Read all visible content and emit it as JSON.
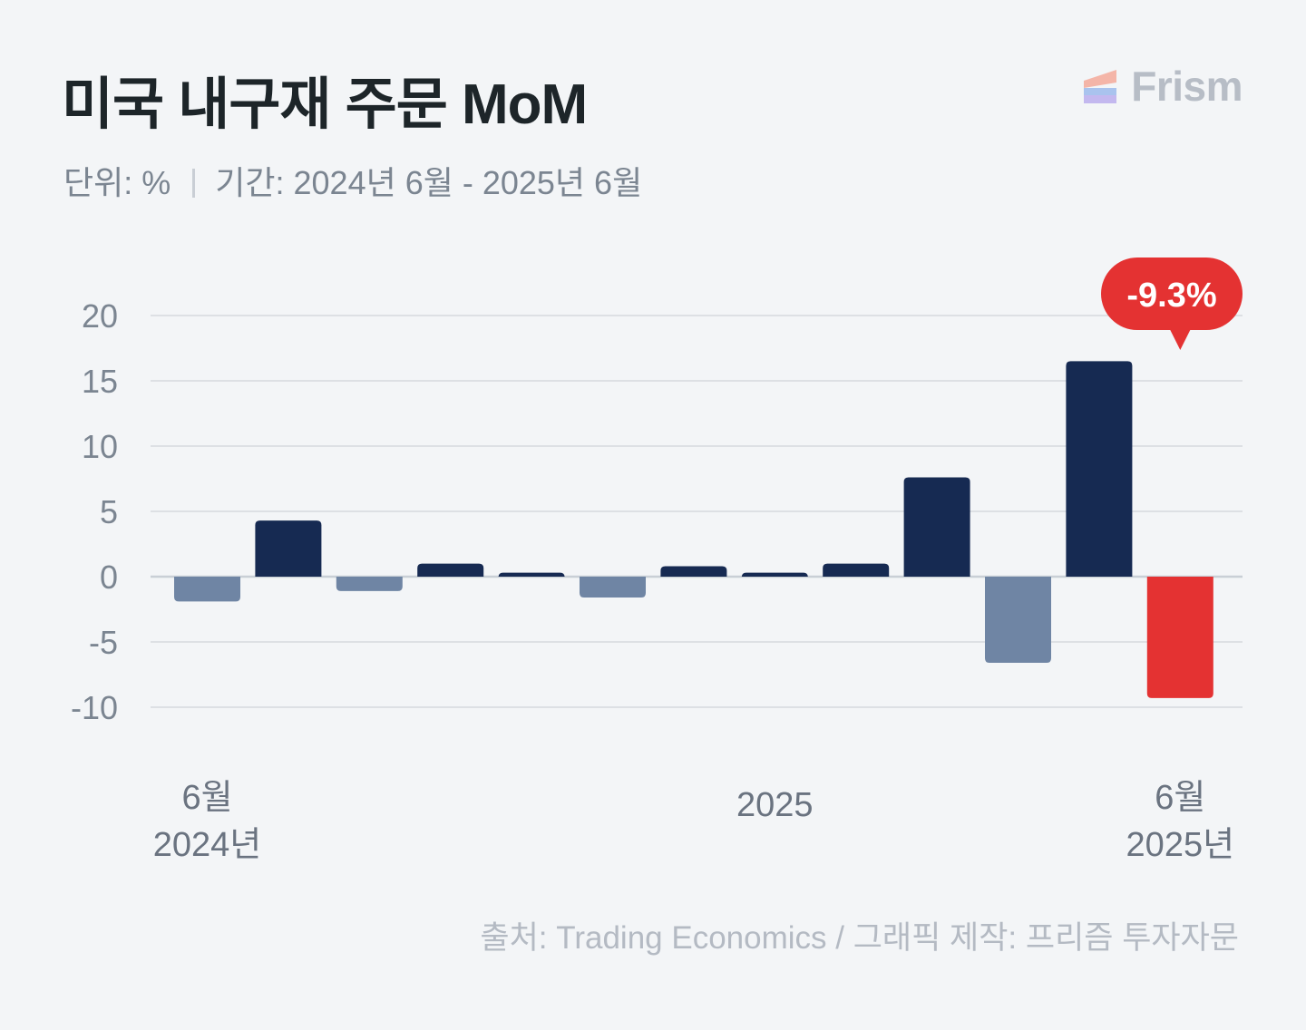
{
  "header": {
    "title": "미국 내구재 주문 MoM",
    "unit": "단위: %",
    "period": "기간: 2024년 6월 - 2025년 6월"
  },
  "logo": {
    "text": "Frism",
    "icon": "frism-logo-icon"
  },
  "source": "출처: Trading Economics / 그래픽 제작: 프리즘 투자자문",
  "colors": {
    "positive": "#162a52",
    "negative": "#6f85a4",
    "highlight": "#e43232",
    "grid": "#d6dade",
    "axis_text": "#7b8591",
    "background": "#f3f5f7"
  },
  "chart_data": {
    "type": "bar",
    "title": "미국 내구재 주문 MoM",
    "categories": [
      "2024-06",
      "2024-07",
      "2024-08",
      "2024-09",
      "2024-10",
      "2024-11",
      "2024-12",
      "2025-01",
      "2025-02",
      "2025-03",
      "2025-04",
      "2025-05",
      "2025-06"
    ],
    "values": [
      -1.9,
      4.3,
      -1.1,
      1.0,
      0.3,
      -1.6,
      0.8,
      0.3,
      1.0,
      7.6,
      -6.6,
      16.5,
      -9.3
    ],
    "ylim": [
      -10,
      20
    ],
    "yticks": [
      20,
      15,
      10,
      5,
      0,
      -5,
      -10
    ],
    "ytick_labels": [
      "20",
      "15",
      "10",
      "5",
      "0",
      "-5",
      "-10"
    ],
    "xtick_labels": [
      {
        "index": 0,
        "lines": [
          "6월",
          "2024년"
        ]
      },
      {
        "index": 7,
        "lines": [
          "2025"
        ]
      },
      {
        "index": 12,
        "lines": [
          "6월",
          "2025년"
        ]
      }
    ],
    "grid": true,
    "highlight_index": 12,
    "callout": "-9.3%"
  }
}
